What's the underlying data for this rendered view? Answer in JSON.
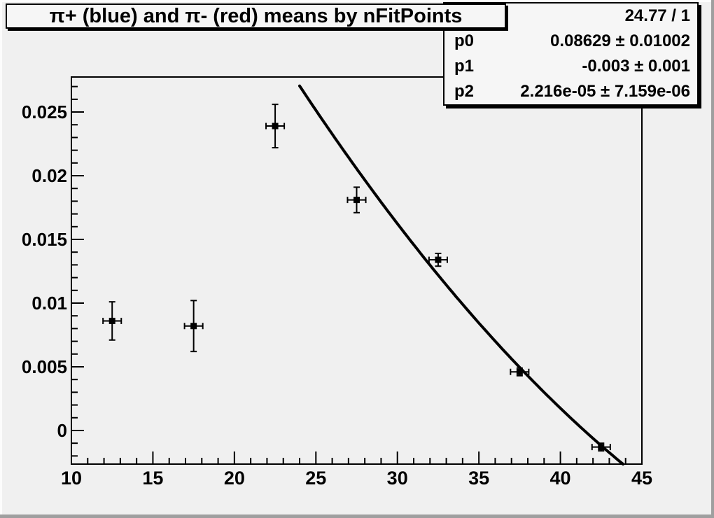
{
  "canvas": {
    "bg_color": "#f0f0f0",
    "bevel_light_color": "#fcfcfc",
    "bevel_dark_color": "#9f9f9f",
    "line_color": "#000000"
  },
  "title": {
    "text": "π+ (blue) and π- (red) means by nFitPoints"
  },
  "stats": {
    "chi2_ndf": "24.77 / 1",
    "rows": [
      {
        "label": "p0",
        "value": "0.08629 ± 0.01002"
      },
      {
        "label": "p1",
        "value": "-0.003 ± 0.001"
      },
      {
        "label": "p2",
        "value": "2.216e-05 ± 7.159e-06"
      }
    ]
  },
  "chart_data": {
    "type": "scatter",
    "title": "π+ (blue) and π- (red) means by nFitPoints",
    "xlabel": "",
    "ylabel": "",
    "xlim": [
      10,
      45
    ],
    "ylim": [
      -0.00264,
      0.02775
    ],
    "grid": false,
    "legend": false,
    "x_major_ticks": [
      10,
      15,
      20,
      25,
      30,
      35,
      40,
      45
    ],
    "x_major_labels": [
      "10",
      "15",
      "20",
      "25",
      "30",
      "35",
      "40",
      "45"
    ],
    "x_minor_step": 1,
    "y_major_ticks": [
      0,
      0.005,
      0.01,
      0.015,
      0.02,
      0.025
    ],
    "y_major_labels": [
      "0",
      "0.005",
      "0.01",
      "0.015",
      "0.02",
      "0.025"
    ],
    "y_minor_step": 0.001,
    "series": [
      {
        "name": "means",
        "marker": "square",
        "color": "#000000",
        "points": [
          {
            "x": 12.5,
            "y": 0.0086,
            "yerr": 0.0015,
            "xerr": 0.56
          },
          {
            "x": 17.5,
            "y": 0.0082,
            "yerr": 0.002,
            "xerr": 0.56
          },
          {
            "x": 22.5,
            "y": 0.0239,
            "yerr": 0.0017,
            "xerr": 0.56
          },
          {
            "x": 27.5,
            "y": 0.0181,
            "yerr": 0.001,
            "xerr": 0.56
          },
          {
            "x": 32.5,
            "y": 0.0134,
            "yerr": 0.0005,
            "xerr": 0.56
          },
          {
            "x": 37.5,
            "y": 0.0046,
            "yerr": 0.0003,
            "xerr": 0.56
          },
          {
            "x": 42.5,
            "y": -0.0013,
            "yerr": 0.0003,
            "xerr": 0.56
          }
        ]
      }
    ],
    "fit": {
      "type": "pol2",
      "p0": 0.08629,
      "p1": -0.003,
      "p2": 2.216e-05,
      "x_start": 24,
      "color": "#000000",
      "chi2_ndf": "24.77 / 1"
    }
  }
}
